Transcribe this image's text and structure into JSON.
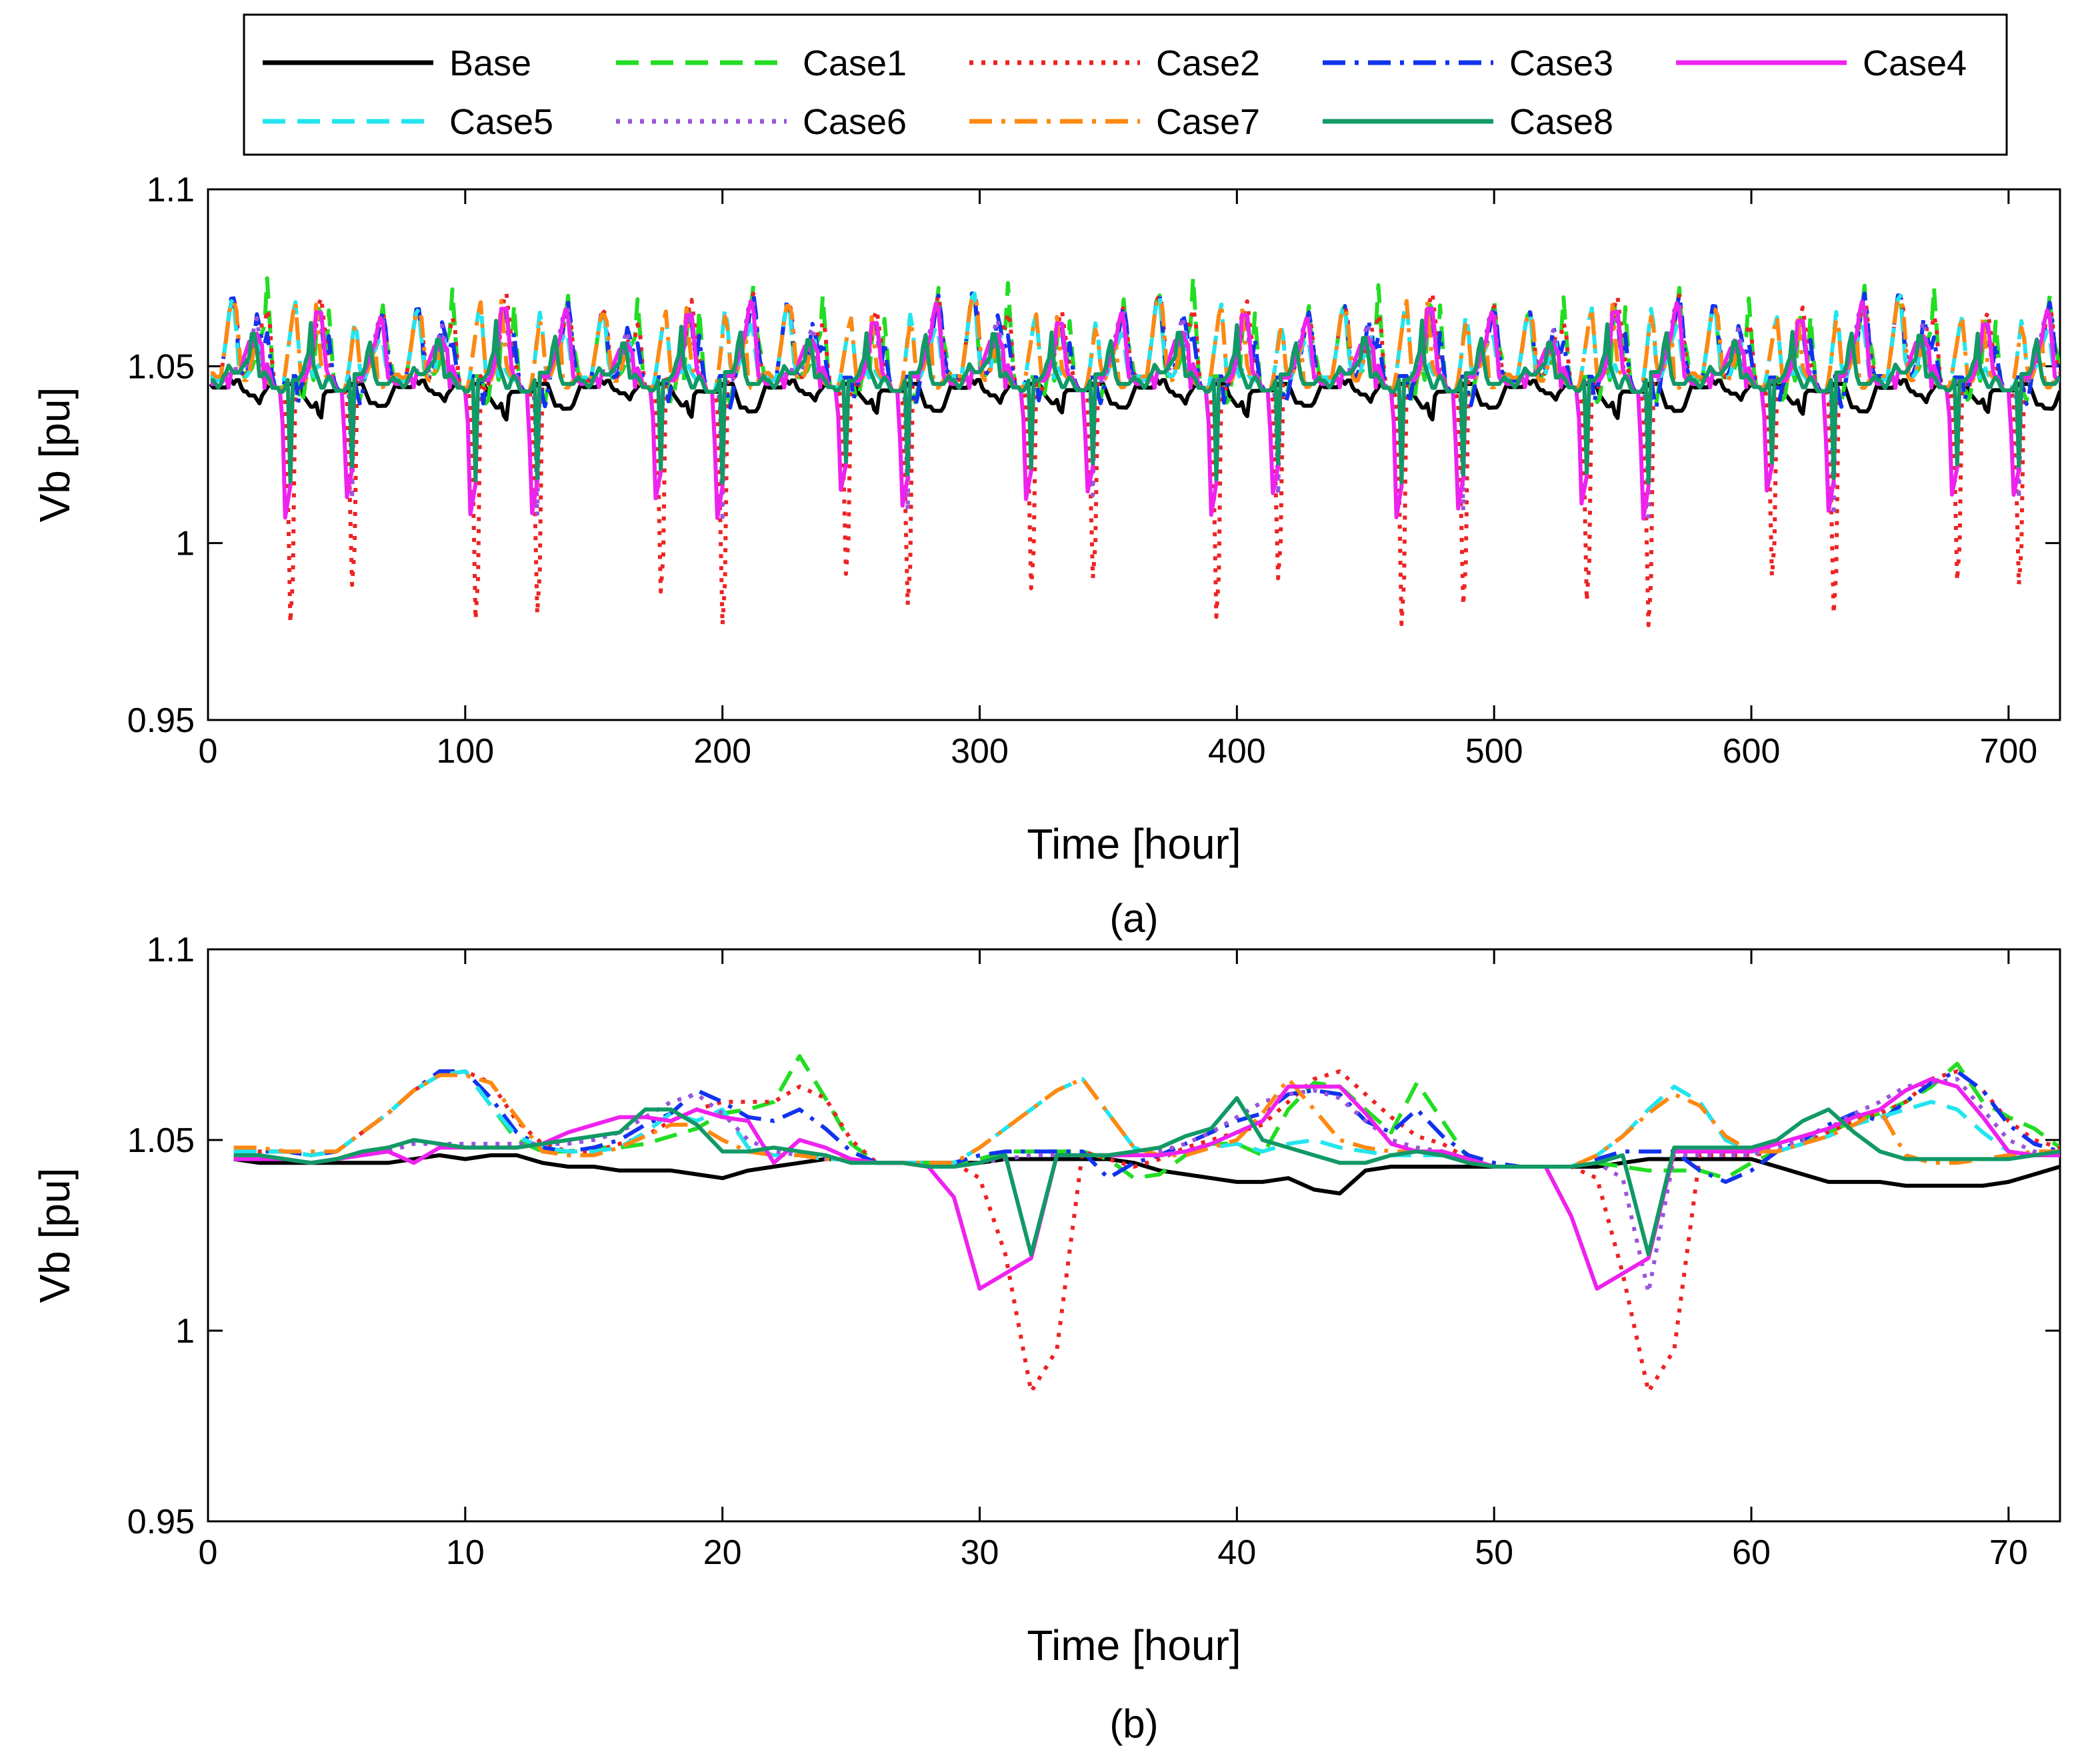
{
  "legend": {
    "entries": [
      {
        "name": "Base",
        "color": "#000000",
        "dash": "solid"
      },
      {
        "name": "Case1",
        "color": "#22dd22",
        "dash": "dash"
      },
      {
        "name": "Case2",
        "color": "#ee2222",
        "dash": "dot"
      },
      {
        "name": "Case3",
        "color": "#1133ee",
        "dash": "dashdot"
      },
      {
        "name": "Case4",
        "color": "#ee22ee",
        "dash": "solid"
      },
      {
        "name": "Case5",
        "color": "#22e5ee",
        "dash": "dash"
      },
      {
        "name": "Case6",
        "color": "#9955dd",
        "dash": "dot"
      },
      {
        "name": "Case7",
        "color": "#ff8811",
        "dash": "dashdot"
      },
      {
        "name": "Case8",
        "color": "#119966",
        "dash": "solid"
      }
    ]
  },
  "chart_data": [
    {
      "type": "line",
      "panel_label": "(a)",
      "xlabel": "Time [hour]",
      "ylabel": "Vb  [pu]",
      "xlim": [
        0,
        720
      ],
      "ylim": [
        0.95,
        1.1
      ],
      "xticks": [
        0,
        100,
        200,
        300,
        400,
        500,
        600,
        700
      ],
      "yticks": [
        0.95,
        1,
        1.05,
        1.1
      ],
      "ytick_labels": [
        "0.95",
        "1",
        "1.05",
        "1.1"
      ],
      "grid": false,
      "pattern": "Each series repeats a daily profile across 30 days (0-720 h); Case2 dips to about 0.975-0.985 pu and Case4/Case6/Case8 dip to about 1.005-1.02 pu near each midday, while Case1/Case3/Case7 peak near 1.065-1.08 pu in the evening.",
      "daily_periodic": true,
      "period_hours": 24
    },
    {
      "type": "line",
      "panel_label": "(b)",
      "xlabel": "Time [hour]",
      "ylabel": "Vb [pu]",
      "xlim": [
        0,
        72
      ],
      "ylim": [
        0.95,
        1.1
      ],
      "xticks": [
        0,
        10,
        20,
        30,
        40,
        50,
        60,
        70
      ],
      "yticks": [
        0.95,
        1,
        1.05,
        1.1
      ],
      "ytick_labels": [
        "0.95",
        "1",
        "1.05",
        "1.1"
      ],
      "grid": false,
      "x": [
        1,
        2,
        3,
        4,
        5,
        6,
        7,
        8,
        9,
        10,
        11,
        12,
        13,
        14,
        15,
        16,
        17,
        18,
        19,
        20,
        21,
        22,
        23,
        24,
        25,
        26,
        27,
        28,
        29,
        30,
        31,
        32,
        33,
        34,
        35,
        36,
        37,
        38,
        39,
        40,
        41,
        42,
        43,
        44,
        45,
        46,
        47,
        48,
        49,
        50,
        51,
        52,
        53,
        54,
        55,
        56,
        57,
        58,
        59,
        60,
        61,
        62,
        63,
        64,
        65,
        66,
        67,
        68,
        69,
        70,
        71,
        72
      ],
      "series": [
        {
          "name": "Base",
          "values": [
            1.045,
            1.044,
            1.044,
            1.044,
            1.044,
            1.044,
            1.044,
            1.045,
            1.046,
            1.045,
            1.046,
            1.046,
            1.044,
            1.043,
            1.043,
            1.042,
            1.042,
            1.042,
            1.041,
            1.04,
            1.042,
            1.043,
            1.044,
            1.045,
            1.045,
            1.044,
            1.044,
            1.044,
            1.044,
            1.044,
            1.045,
            1.045,
            1.045,
            1.045,
            1.045,
            1.044,
            1.042,
            1.041,
            1.04,
            1.039,
            1.039,
            1.04,
            1.037,
            1.036,
            1.042,
            1.043,
            1.043,
            1.043,
            1.043,
            1.043,
            1.043,
            1.043,
            1.043,
            1.043,
            1.044,
            1.045,
            1.045,
            1.045,
            1.045,
            1.045,
            1.043,
            1.041,
            1.039,
            1.039,
            1.039,
            1.038,
            1.038,
            1.038,
            1.038,
            1.039,
            1.041,
            1.043
          ]
        },
        {
          "name": "Case1",
          "values": [
            1.047,
            1.047,
            1.047,
            1.046,
            1.047,
            1.052,
            1.057,
            1.063,
            1.067,
            1.068,
            1.059,
            1.05,
            1.047,
            1.047,
            1.048,
            1.048,
            1.049,
            1.051,
            1.053,
            1.057,
            1.058,
            1.06,
            1.072,
            1.061,
            1.049,
            1.044,
            1.044,
            1.044,
            1.044,
            1.045,
            1.047,
            1.047,
            1.047,
            1.047,
            1.045,
            1.04,
            1.041,
            1.046,
            1.049,
            1.049,
            1.046,
            1.058,
            1.065,
            1.064,
            1.058,
            1.052,
            1.065,
            1.055,
            1.045,
            1.043,
            1.043,
            1.043,
            1.043,
            1.044,
            1.043,
            1.042,
            1.042,
            1.042,
            1.04,
            1.044,
            1.047,
            1.049,
            1.052,
            1.055,
            1.057,
            1.06,
            1.064,
            1.07,
            1.06,
            1.056,
            1.053,
            1.048
          ]
        },
        {
          "name": "Case2",
          "values": [
            1.047,
            1.047,
            1.047,
            1.046,
            1.047,
            1.052,
            1.057,
            1.063,
            1.067,
            1.068,
            1.065,
            1.055,
            1.049,
            1.047,
            1.047,
            1.049,
            1.051,
            1.055,
            1.058,
            1.06,
            1.06,
            1.06,
            1.064,
            1.061,
            1.05,
            1.044,
            1.044,
            1.044,
            1.044,
            1.04,
            1.02,
            0.984,
            0.995,
            1.047,
            1.045,
            1.043,
            1.045,
            1.048,
            1.05,
            1.052,
            1.054,
            1.06,
            1.066,
            1.068,
            1.062,
            1.056,
            1.051,
            1.049,
            1.045,
            1.043,
            1.043,
            1.043,
            1.043,
            1.04,
            1.015,
            0.984,
            0.995,
            1.046,
            1.046,
            1.046,
            1.047,
            1.049,
            1.052,
            1.055,
            1.057,
            1.06,
            1.066,
            1.068,
            1.063,
            1.055,
            1.05,
            1.048
          ]
        },
        {
          "name": "Case3",
          "values": [
            1.047,
            1.047,
            1.047,
            1.046,
            1.047,
            1.052,
            1.057,
            1.063,
            1.068,
            1.068,
            1.061,
            1.052,
            1.048,
            1.047,
            1.048,
            1.05,
            1.054,
            1.057,
            1.063,
            1.06,
            1.056,
            1.055,
            1.058,
            1.053,
            1.047,
            1.044,
            1.044,
            1.044,
            1.044,
            1.046,
            1.047,
            1.047,
            1.047,
            1.047,
            1.04,
            1.044,
            1.046,
            1.049,
            1.052,
            1.055,
            1.057,
            1.062,
            1.063,
            1.062,
            1.055,
            1.052,
            1.058,
            1.051,
            1.046,
            1.044,
            1.043,
            1.043,
            1.043,
            1.045,
            1.047,
            1.047,
            1.047,
            1.042,
            1.039,
            1.042,
            1.047,
            1.05,
            1.054,
            1.057,
            1.055,
            1.06,
            1.065,
            1.068,
            1.063,
            1.054,
            1.049,
            1.047
          ]
        },
        {
          "name": "Case4",
          "values": [
            1.045,
            1.045,
            1.045,
            1.044,
            1.045,
            1.046,
            1.047,
            1.044,
            1.048,
            1.048,
            1.048,
            1.048,
            1.049,
            1.052,
            1.054,
            1.056,
            1.056,
            1.055,
            1.058,
            1.056,
            1.055,
            1.044,
            1.05,
            1.048,
            1.045,
            1.044,
            1.044,
            1.043,
            1.035,
            1.011,
            1.015,
            1.019,
            1.046,
            1.046,
            1.046,
            1.046,
            1.046,
            1.047,
            1.049,
            1.052,
            1.055,
            1.064,
            1.064,
            1.064,
            1.057,
            1.049,
            1.047,
            1.047,
            1.045,
            1.043,
            1.043,
            1.043,
            1.03,
            1.011,
            1.015,
            1.019,
            1.047,
            1.047,
            1.047,
            1.047,
            1.049,
            1.051,
            1.053,
            1.056,
            1.058,
            1.063,
            1.066,
            1.064,
            1.056,
            1.047,
            1.046,
            1.046
          ]
        },
        {
          "name": "Case5",
          "values": [
            1.047,
            1.047,
            1.047,
            1.046,
            1.047,
            1.052,
            1.057,
            1.063,
            1.067,
            1.068,
            1.059,
            1.051,
            1.048,
            1.047,
            1.047,
            1.048,
            1.052,
            1.057,
            1.055,
            1.058,
            1.048,
            1.046,
            1.046,
            1.045,
            1.045,
            1.044,
            1.044,
            1.044,
            1.044,
            1.048,
            1.053,
            1.058,
            1.063,
            1.066,
            1.057,
            1.048,
            1.046,
            1.047,
            1.048,
            1.049,
            1.047,
            1.049,
            1.05,
            1.048,
            1.047,
            1.046,
            1.046,
            1.046,
            1.045,
            1.043,
            1.043,
            1.043,
            1.043,
            1.046,
            1.051,
            1.058,
            1.064,
            1.06,
            1.05,
            1.047,
            1.047,
            1.049,
            1.051,
            1.054,
            1.056,
            1.058,
            1.06,
            1.058,
            1.052,
            1.047,
            1.046,
            1.046
          ]
        },
        {
          "name": "Case6",
          "values": [
            1.045,
            1.045,
            1.045,
            1.044,
            1.045,
            1.046,
            1.047,
            1.049,
            1.049,
            1.049,
            1.049,
            1.049,
            1.049,
            1.049,
            1.05,
            1.052,
            1.056,
            1.06,
            1.062,
            1.057,
            1.05,
            1.047,
            1.046,
            1.045,
            1.045,
            1.044,
            1.044,
            1.043,
            1.043,
            1.044,
            1.045,
            1.046,
            1.046,
            1.046,
            1.046,
            1.046,
            1.047,
            1.049,
            1.052,
            1.056,
            1.06,
            1.062,
            1.063,
            1.061,
            1.055,
            1.05,
            1.048,
            1.047,
            1.045,
            1.043,
            1.043,
            1.043,
            1.043,
            1.044,
            1.04,
            1.01,
            1.046,
            1.046,
            1.046,
            1.046,
            1.048,
            1.05,
            1.053,
            1.057,
            1.06,
            1.064,
            1.065,
            1.066,
            1.058,
            1.05,
            1.047,
            1.046
          ]
        },
        {
          "name": "Case7",
          "values": [
            1.048,
            1.048,
            1.047,
            1.047,
            1.047,
            1.052,
            1.057,
            1.063,
            1.067,
            1.067,
            1.065,
            1.056,
            1.047,
            1.046,
            1.046,
            1.048,
            1.051,
            1.054,
            1.054,
            1.05,
            1.047,
            1.046,
            1.046,
            1.045,
            1.045,
            1.044,
            1.044,
            1.044,
            1.044,
            1.048,
            1.053,
            1.058,
            1.063,
            1.066,
            1.057,
            1.048,
            1.046,
            1.046,
            1.048,
            1.05,
            1.057,
            1.066,
            1.058,
            1.05,
            1.048,
            1.047,
            1.047,
            1.046,
            1.045,
            1.043,
            1.043,
            1.043,
            1.043,
            1.046,
            1.051,
            1.057,
            1.062,
            1.059,
            1.051,
            1.047,
            1.047,
            1.049,
            1.051,
            1.054,
            1.058,
            1.046,
            1.044,
            1.044,
            1.045,
            1.046,
            1.047,
            1.047
          ]
        },
        {
          "name": "Case8",
          "values": [
            1.046,
            1.046,
            1.045,
            1.044,
            1.045,
            1.047,
            1.048,
            1.05,
            1.049,
            1.048,
            1.048,
            1.048,
            1.049,
            1.05,
            1.051,
            1.052,
            1.058,
            1.058,
            1.054,
            1.047,
            1.047,
            1.048,
            1.047,
            1.046,
            1.044,
            1.044,
            1.044,
            1.043,
            1.043,
            1.044,
            1.046,
            1.02,
            1.046,
            1.046,
            1.046,
            1.047,
            1.048,
            1.051,
            1.053,
            1.061,
            1.05,
            1.048,
            1.046,
            1.044,
            1.044,
            1.046,
            1.047,
            1.046,
            1.044,
            1.043,
            1.043,
            1.043,
            1.043,
            1.044,
            1.046,
            1.02,
            1.048,
            1.048,
            1.048,
            1.048,
            1.05,
            1.055,
            1.058,
            1.052,
            1.047,
            1.045,
            1.045,
            1.045,
            1.045,
            1.045,
            1.046,
            1.047
          ]
        }
      ]
    }
  ]
}
